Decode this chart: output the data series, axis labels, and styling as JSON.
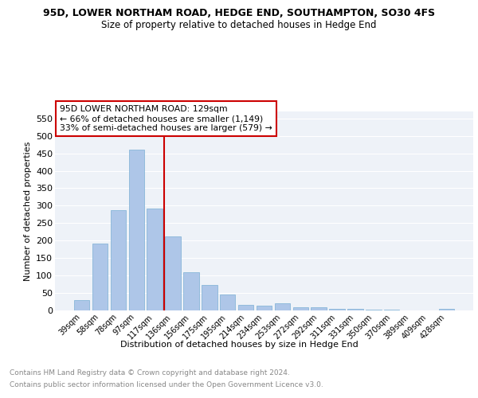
{
  "title": "95D, LOWER NORTHAM ROAD, HEDGE END, SOUTHAMPTON, SO30 4FS",
  "subtitle": "Size of property relative to detached houses in Hedge End",
  "xlabel": "Distribution of detached houses by size in Hedge End",
  "ylabel": "Number of detached properties",
  "footnote1": "Contains HM Land Registry data © Crown copyright and database right 2024.",
  "footnote2": "Contains public sector information licensed under the Open Government Licence v3.0.",
  "categories": [
    "39sqm",
    "58sqm",
    "78sqm",
    "97sqm",
    "117sqm",
    "136sqm",
    "156sqm",
    "175sqm",
    "195sqm",
    "214sqm",
    "234sqm",
    "253sqm",
    "272sqm",
    "292sqm",
    "311sqm",
    "331sqm",
    "350sqm",
    "370sqm",
    "389sqm",
    "409sqm",
    "428sqm"
  ],
  "values": [
    30,
    192,
    288,
    460,
    292,
    213,
    110,
    73,
    46,
    15,
    13,
    20,
    10,
    9,
    5,
    4,
    2,
    2,
    1,
    1,
    5
  ],
  "bar_color": "#aec6e8",
  "bar_edge_color": "#7aafd4",
  "vline_color": "#cc0000",
  "vline_x": 4.5,
  "annotation_text": "95D LOWER NORTHAM ROAD: 129sqm\n← 66% of detached houses are smaller (1,149)\n33% of semi-detached houses are larger (579) →",
  "annotation_box_facecolor": "#ffffff",
  "annotation_box_edgecolor": "#cc0000",
  "plot_bg_color": "#eef2f8",
  "fig_bg_color": "#ffffff",
  "ylim": [
    0,
    570
  ],
  "yticks": [
    0,
    50,
    100,
    150,
    200,
    250,
    300,
    350,
    400,
    450,
    500,
    550
  ]
}
